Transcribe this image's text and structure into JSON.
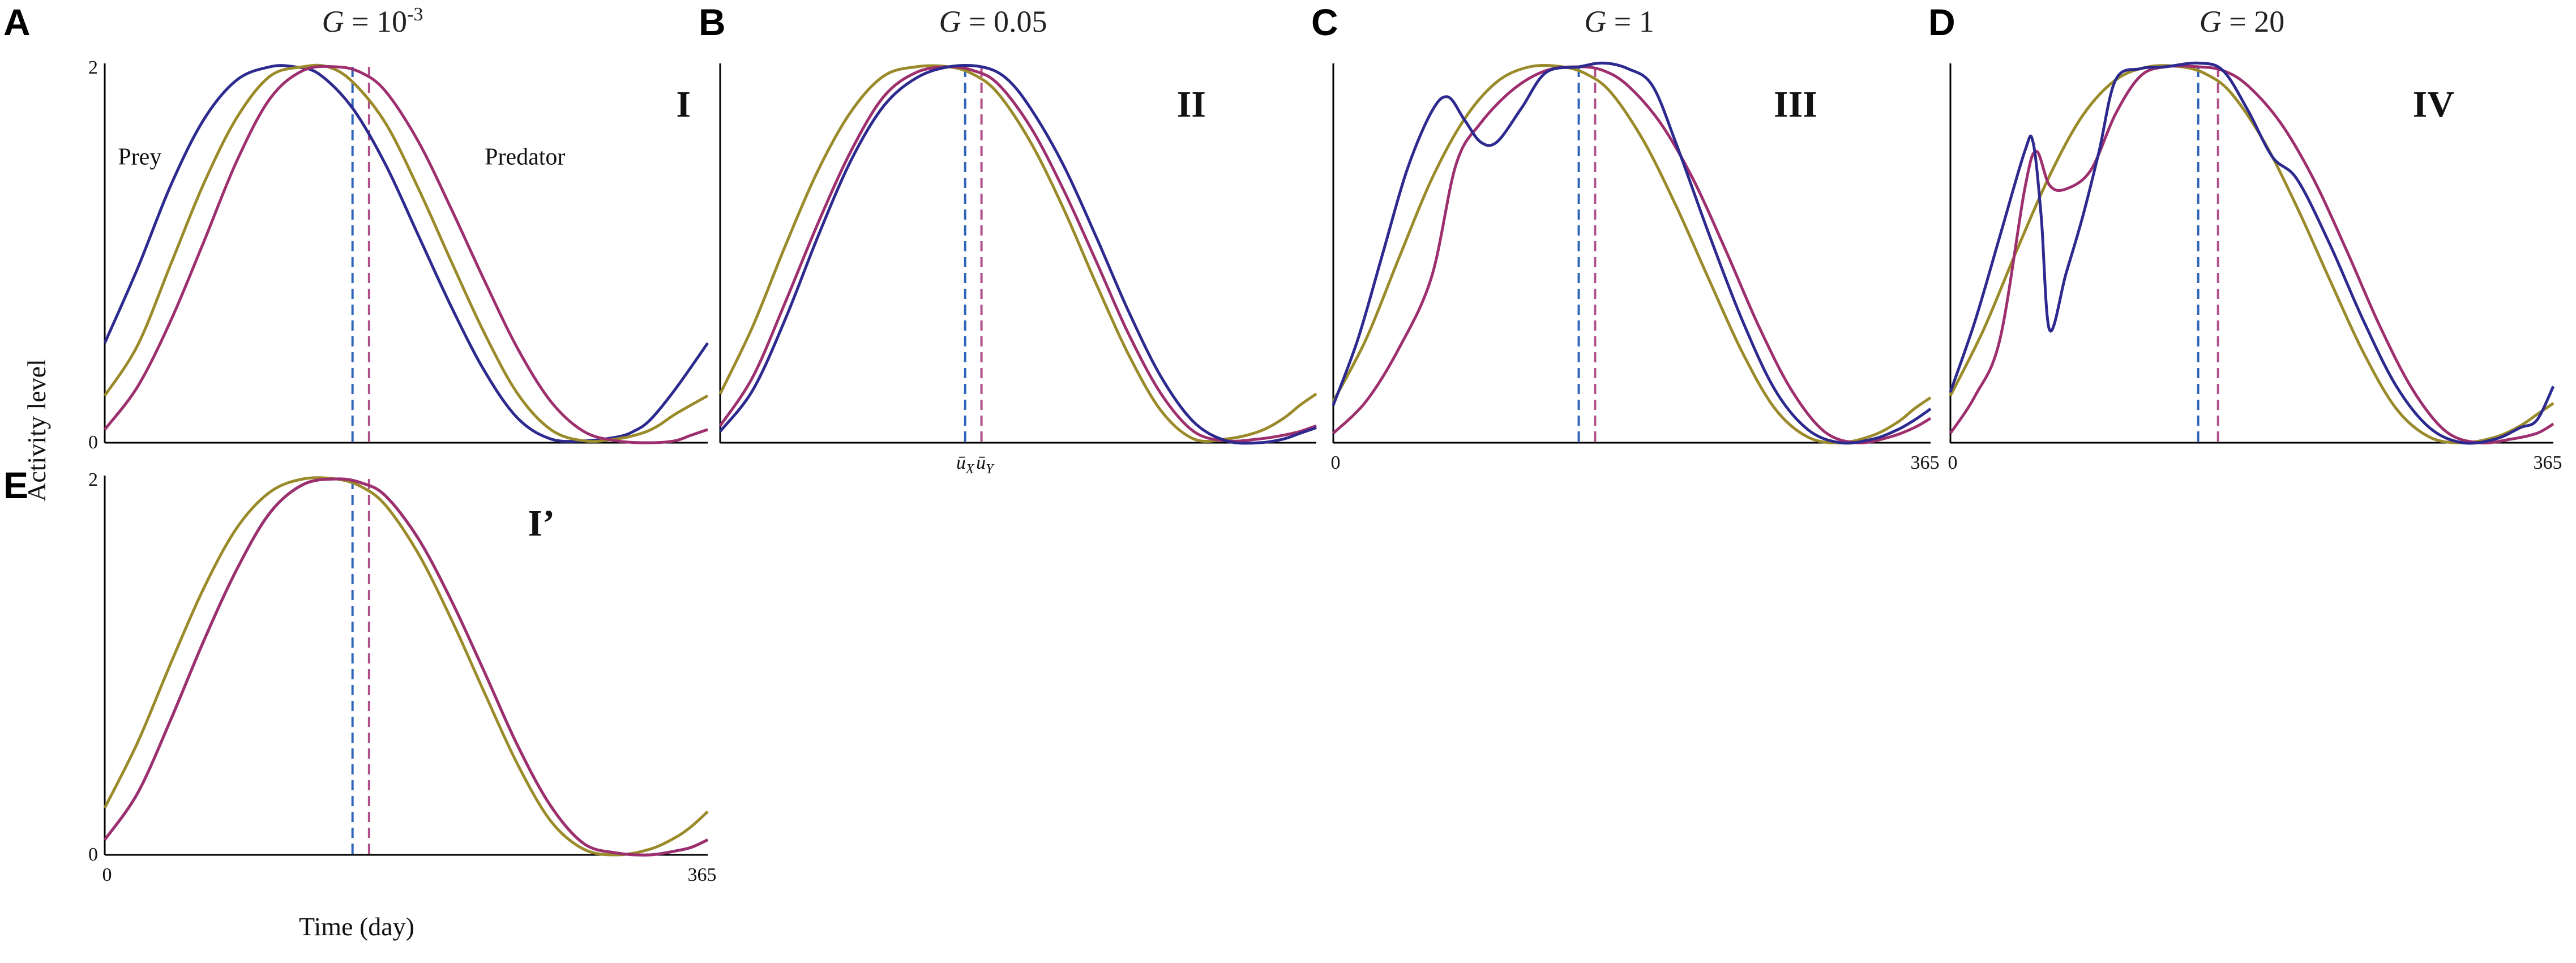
{
  "figure": {
    "ylabel": "Activity level",
    "xlabel": "Time (day)"
  },
  "colors": {
    "prey": "#2d2a8f",
    "predator": "#9e2f6e",
    "reference": "#9a8a2a",
    "mean_prey": "#2f64b8",
    "mean_predator": "#b0508a"
  },
  "chart_data": [
    {
      "type": "line",
      "letter": "A",
      "title_text": "G = 10",
      "title_sup": "-3",
      "roman": "I",
      "xlim": [
        0,
        365
      ],
      "ylim": [
        0,
        2
      ],
      "y_tick_labels": [
        "0",
        "2"
      ],
      "x_tick_labels": [],
      "series_labels": [
        {
          "text": "Prey",
          "x": 8,
          "y": 1.48
        },
        {
          "text": "Predator",
          "x": 230,
          "y": 1.48
        }
      ],
      "mean_labels": [],
      "mean_lines": {
        "prey": 150,
        "predator": 160
      },
      "series": [
        {
          "role": "prey",
          "x": [
            0,
            20,
            40,
            60,
            80,
            100,
            115,
            130,
            150,
            170,
            190,
            210,
            230,
            250,
            270,
            290,
            310,
            320,
            330,
            345,
            365
          ],
          "y": [
            0.53,
            0.93,
            1.37,
            1.72,
            1.93,
            2.0,
            2.0,
            1.96,
            1.78,
            1.48,
            1.1,
            0.72,
            0.38,
            0.13,
            0.02,
            0.01,
            0.03,
            0.06,
            0.12,
            0.28,
            0.53
          ]
        },
        {
          "role": "reference",
          "x": [
            0,
            20,
            40,
            60,
            80,
            100,
            120,
            135,
            150,
            170,
            190,
            210,
            230,
            250,
            270,
            290,
            310,
            325,
            335,
            345,
            365
          ],
          "y": [
            0.25,
            0.52,
            0.95,
            1.38,
            1.73,
            1.95,
            2.0,
            2.0,
            1.92,
            1.7,
            1.35,
            0.96,
            0.58,
            0.26,
            0.07,
            0.01,
            0.02,
            0.05,
            0.09,
            0.15,
            0.25
          ]
        },
        {
          "role": "predator",
          "x": [
            0,
            20,
            40,
            60,
            80,
            100,
            120,
            140,
            155,
            170,
            190,
            210,
            230,
            250,
            270,
            290,
            310,
            330,
            345,
            355,
            365
          ],
          "y": [
            0.07,
            0.3,
            0.65,
            1.07,
            1.5,
            1.83,
            1.98,
            2.0,
            1.97,
            1.87,
            1.6,
            1.24,
            0.86,
            0.5,
            0.22,
            0.06,
            0.01,
            0.0,
            0.01,
            0.04,
            0.07
          ]
        }
      ]
    },
    {
      "type": "line",
      "letter": "B",
      "title_text": "G = 0.05",
      "title_sup": "",
      "roman": "II",
      "xlim": [
        0,
        365
      ],
      "ylim": [
        0,
        2
      ],
      "y_tick_labels": [],
      "x_tick_labels": [],
      "series_labels": [],
      "mean_labels": [
        {
          "base": "ū",
          "sub": "X",
          "x": 150
        },
        {
          "base": "ū",
          "sub": "Y",
          "x": 162
        }
      ],
      "mean_lines": {
        "prey": 150,
        "predator": 160
      },
      "series": [
        {
          "role": "reference",
          "x": [
            0,
            20,
            40,
            60,
            80,
            100,
            120,
            140,
            155,
            170,
            190,
            210,
            230,
            250,
            270,
            290,
            310,
            330,
            345,
            355,
            365
          ],
          "y": [
            0.26,
            0.62,
            1.05,
            1.45,
            1.76,
            1.95,
            2.0,
            2.0,
            1.96,
            1.86,
            1.6,
            1.25,
            0.85,
            0.47,
            0.17,
            0.02,
            0.02,
            0.06,
            0.13,
            0.2,
            0.26
          ]
        },
        {
          "role": "predator",
          "x": [
            0,
            20,
            40,
            60,
            80,
            100,
            120,
            140,
            155,
            170,
            190,
            210,
            230,
            250,
            270,
            290,
            310,
            330,
            345,
            355,
            365
          ],
          "y": [
            0.09,
            0.35,
            0.75,
            1.17,
            1.55,
            1.84,
            1.97,
            2.0,
            1.98,
            1.91,
            1.68,
            1.35,
            0.97,
            0.58,
            0.26,
            0.06,
            0.01,
            0.02,
            0.04,
            0.06,
            0.09
          ]
        },
        {
          "role": "prey",
          "x": [
            0,
            20,
            40,
            60,
            80,
            100,
            120,
            140,
            160,
            175,
            190,
            210,
            230,
            250,
            270,
            290,
            310,
            330,
            345,
            355,
            365
          ],
          "y": [
            0.06,
            0.28,
            0.66,
            1.1,
            1.5,
            1.79,
            1.94,
            2.0,
            2.0,
            1.94,
            1.78,
            1.48,
            1.1,
            0.7,
            0.35,
            0.11,
            0.01,
            0.0,
            0.02,
            0.05,
            0.08
          ]
        }
      ]
    },
    {
      "type": "line",
      "letter": "C",
      "title_text": "G = 1",
      "title_sup": "",
      "roman": "III",
      "xlim": [
        0,
        365
      ],
      "ylim": [
        0,
        2
      ],
      "y_tick_labels": [],
      "x_tick_labels": [
        "0",
        "365"
      ],
      "series_labels": [],
      "mean_labels": [],
      "mean_lines": {
        "prey": 150,
        "predator": 160
      },
      "series": [
        {
          "role": "reference",
          "x": [
            0,
            20,
            40,
            60,
            80,
            100,
            120,
            140,
            155,
            170,
            190,
            210,
            230,
            250,
            270,
            290,
            310,
            330,
            345,
            355,
            365
          ],
          "y": [
            0.22,
            0.55,
            0.98,
            1.4,
            1.72,
            1.92,
            2.0,
            2.0,
            1.96,
            1.86,
            1.6,
            1.25,
            0.86,
            0.48,
            0.18,
            0.03,
            0.0,
            0.04,
            0.11,
            0.18,
            0.24
          ]
        },
        {
          "role": "predator",
          "x": [
            0,
            20,
            40,
            60,
            75,
            90,
            110,
            130,
            150,
            165,
            180,
            200,
            220,
            240,
            260,
            280,
            300,
            320,
            340,
            355,
            365
          ],
          "y": [
            0.05,
            0.22,
            0.5,
            0.88,
            1.48,
            1.7,
            1.88,
            1.98,
            2.0,
            1.98,
            1.9,
            1.7,
            1.4,
            1.02,
            0.62,
            0.28,
            0.06,
            0.0,
            0.03,
            0.08,
            0.13
          ]
        },
        {
          "role": "prey",
          "x": [
            0,
            15,
            30,
            45,
            60,
            70,
            80,
            90,
            100,
            115,
            130,
            150,
            165,
            180,
            195,
            210,
            230,
            250,
            270,
            290,
            310,
            330,
            345,
            355,
            365
          ],
          "y": [
            0.2,
            0.55,
            1.0,
            1.45,
            1.76,
            1.84,
            1.72,
            1.6,
            1.6,
            1.78,
            1.97,
            2.0,
            2.02,
            1.99,
            1.9,
            1.58,
            1.1,
            0.65,
            0.28,
            0.07,
            0.0,
            0.02,
            0.07,
            0.12,
            0.18
          ]
        }
      ]
    },
    {
      "type": "line",
      "letter": "D",
      "title_text": "G = 20",
      "title_sup": "",
      "roman": "IV",
      "xlim": [
        0,
        365
      ],
      "ylim": [
        0,
        2
      ],
      "y_tick_labels": [],
      "x_tick_labels": [
        "0",
        "365"
      ],
      "series_labels": [],
      "mean_labels": [],
      "mean_lines": {
        "prey": 150,
        "predator": 162
      },
      "series": [
        {
          "role": "reference",
          "x": [
            0,
            20,
            40,
            60,
            80,
            100,
            120,
            140,
            155,
            170,
            190,
            210,
            230,
            250,
            270,
            290,
            310,
            330,
            345,
            355,
            365
          ],
          "y": [
            0.25,
            0.6,
            1.02,
            1.42,
            1.74,
            1.93,
            2.0,
            2.0,
            1.96,
            1.86,
            1.6,
            1.25,
            0.86,
            0.48,
            0.18,
            0.03,
            0.0,
            0.03,
            0.09,
            0.15,
            0.21
          ]
        },
        {
          "role": "predator",
          "x": [
            0,
            15,
            30,
            45,
            52,
            60,
            70,
            85,
            100,
            115,
            130,
            150,
            165,
            180,
            200,
            220,
            240,
            260,
            280,
            300,
            320,
            340,
            355,
            365
          ],
          "y": [
            0.05,
            0.25,
            0.55,
            1.35,
            1.55,
            1.37,
            1.35,
            1.45,
            1.75,
            1.95,
            2.0,
            2.0,
            1.98,
            1.9,
            1.7,
            1.4,
            1.02,
            0.62,
            0.28,
            0.06,
            0.0,
            0.02,
            0.05,
            0.1
          ]
        },
        {
          "role": "prey",
          "x": [
            0,
            15,
            30,
            45,
            50,
            55,
            60,
            70,
            80,
            90,
            100,
            115,
            130,
            150,
            165,
            180,
            195,
            210,
            230,
            250,
            270,
            290,
            310,
            330,
            345,
            355,
            365
          ],
          "y": [
            0.27,
            0.65,
            1.1,
            1.55,
            1.6,
            1.2,
            0.6,
            0.9,
            1.2,
            1.55,
            1.93,
            1.99,
            2.0,
            2.02,
            1.98,
            1.77,
            1.52,
            1.4,
            1.05,
            0.65,
            0.3,
            0.08,
            0.0,
            0.02,
            0.08,
            0.12,
            0.3
          ]
        }
      ]
    },
    {
      "type": "line",
      "letter": "E",
      "title_text": "",
      "title_sup": "",
      "roman": "I’",
      "xlim": [
        0,
        365
      ],
      "ylim": [
        0,
        2
      ],
      "y_tick_labels": [
        "0",
        "2"
      ],
      "x_tick_labels": [
        "0",
        "365"
      ],
      "series_labels": [],
      "mean_labels": [],
      "mean_lines": {
        "prey": 150,
        "predator": 160
      },
      "series": [
        {
          "role": "reference",
          "x": [
            0,
            20,
            40,
            60,
            80,
            100,
            120,
            140,
            155,
            170,
            190,
            210,
            230,
            250,
            270,
            290,
            310,
            330,
            345,
            355,
            365
          ],
          "y": [
            0.25,
            0.6,
            1.02,
            1.42,
            1.74,
            1.93,
            2.0,
            2.0,
            1.96,
            1.86,
            1.6,
            1.25,
            0.86,
            0.48,
            0.18,
            0.03,
            0.0,
            0.03,
            0.09,
            0.15,
            0.23
          ]
        },
        {
          "role": "prey",
          "x": [
            0,
            20,
            40,
            60,
            80,
            100,
            120,
            140,
            155,
            170,
            190,
            210,
            230,
            250,
            270,
            290,
            310,
            330,
            345,
            355,
            365
          ],
          "y": [
            0.08,
            0.33,
            0.72,
            1.14,
            1.52,
            1.82,
            1.97,
            2.0,
            1.98,
            1.91,
            1.68,
            1.35,
            0.97,
            0.58,
            0.26,
            0.06,
            0.01,
            0.0,
            0.02,
            0.04,
            0.08
          ]
        },
        {
          "role": "predator",
          "x": [
            0,
            20,
            40,
            60,
            80,
            100,
            120,
            140,
            155,
            170,
            190,
            210,
            230,
            250,
            270,
            290,
            310,
            330,
            345,
            355,
            365
          ],
          "y": [
            0.08,
            0.33,
            0.72,
            1.14,
            1.52,
            1.82,
            1.97,
            2.0,
            1.98,
            1.91,
            1.68,
            1.35,
            0.97,
            0.58,
            0.26,
            0.06,
            0.01,
            0.0,
            0.02,
            0.04,
            0.08
          ]
        }
      ]
    }
  ]
}
